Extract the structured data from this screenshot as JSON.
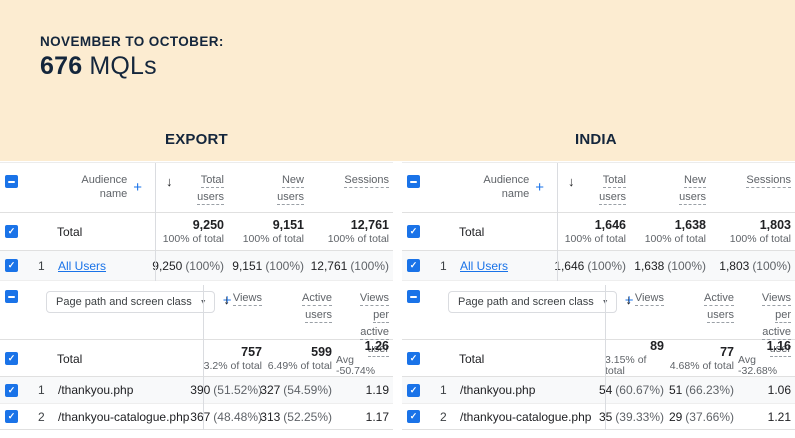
{
  "banner": {
    "kicker": "NOVEMBER TO OCTOBER:",
    "value": "676",
    "unit": "MQLs"
  },
  "icons": {
    "sort": "↓",
    "add": "+",
    "caret": "▼",
    "check": "✓"
  },
  "colors": {
    "banner_bg": "#fcecd1",
    "heading_navy": "#14263c",
    "accent_blue": "#1a73e8",
    "text_dark": "#202124",
    "text_gray": "#5f6368",
    "row_alt_bg": "#f8f9fa",
    "border": "#e0e0e0"
  },
  "panels": [
    {
      "title": "EXPORT",
      "audience": {
        "dimension_lines": [
          "Audience",
          "name"
        ],
        "columns": [
          {
            "label": "Total users",
            "lines": [
              "Total",
              "users"
            ]
          },
          {
            "label": "New users",
            "lines": [
              "New",
              "users"
            ]
          },
          {
            "label": "Sessions",
            "lines": [
              "Sessions"
            ]
          }
        ],
        "total": {
          "label": "Total",
          "cells": [
            {
              "value": "9,250",
              "sub": "100% of total"
            },
            {
              "value": "9,151",
              "sub": "100% of total"
            },
            {
              "value": "12,761",
              "sub": "100% of total"
            }
          ]
        },
        "rows": [
          {
            "index": "1",
            "name": "All Users",
            "cells": [
              {
                "value": "9,250",
                "pct": "(100%)"
              },
              {
                "value": "9,151",
                "pct": "(100%)"
              },
              {
                "value": "12,761",
                "pct": "(100%)"
              }
            ]
          }
        ]
      },
      "pages": {
        "selector": "Page path and screen class",
        "columns": [
          {
            "label": "Views",
            "lines": [
              "Views"
            ]
          },
          {
            "label": "Active users",
            "lines": [
              "Active",
              "users"
            ]
          },
          {
            "label": "Views per active user",
            "lines": [
              "Views",
              "per",
              "active",
              "user"
            ]
          }
        ],
        "total": {
          "label": "Total",
          "cells": [
            {
              "value": "757",
              "sub": "3.2% of total"
            },
            {
              "value": "599",
              "sub": "6.49% of total"
            },
            {
              "value": "1.26",
              "sub": "Avg -50.74%"
            }
          ]
        },
        "rows": [
          {
            "index": "1",
            "name": "/thankyou.php",
            "cells": [
              {
                "value": "390",
                "pct": "(51.52%)"
              },
              {
                "value": "327",
                "pct": "(54.59%)"
              },
              {
                "value": "1.19",
                "pct": ""
              }
            ]
          },
          {
            "index": "2",
            "name": "/thankyou-catalogue.php",
            "cells": [
              {
                "value": "367",
                "pct": "(48.48%)"
              },
              {
                "value": "313",
                "pct": "(52.25%)"
              },
              {
                "value": "1.17",
                "pct": ""
              }
            ]
          }
        ]
      }
    },
    {
      "title": "INDIA",
      "audience": {
        "dimension_lines": [
          "Audience",
          "name"
        ],
        "columns": [
          {
            "label": "Total users",
            "lines": [
              "Total",
              "users"
            ]
          },
          {
            "label": "New users",
            "lines": [
              "New",
              "users"
            ]
          },
          {
            "label": "Sessions",
            "lines": [
              "Sessions"
            ]
          }
        ],
        "total": {
          "label": "Total",
          "cells": [
            {
              "value": "1,646",
              "sub": "100% of total"
            },
            {
              "value": "1,638",
              "sub": "100% of total"
            },
            {
              "value": "1,803",
              "sub": "100% of total"
            }
          ]
        },
        "rows": [
          {
            "index": "1",
            "name": "All Users",
            "cells": [
              {
                "value": "1,646",
                "pct": "(100%)"
              },
              {
                "value": "1,638",
                "pct": "(100%)"
              },
              {
                "value": "1,803",
                "pct": "(100%)"
              }
            ]
          }
        ]
      },
      "pages": {
        "selector": "Page path and screen class",
        "columns": [
          {
            "label": "Views",
            "lines": [
              "Views"
            ]
          },
          {
            "label": "Active users",
            "lines": [
              "Active",
              "users"
            ]
          },
          {
            "label": "Views per active user",
            "lines": [
              "Views",
              "per",
              "active",
              "user"
            ]
          }
        ],
        "total": {
          "label": "Total",
          "cells": [
            {
              "value": "89",
              "sub": "3.15% of total"
            },
            {
              "value": "77",
              "sub": "4.68% of total"
            },
            {
              "value": "1.16",
              "sub": "Avg -32.68%"
            }
          ]
        },
        "rows": [
          {
            "index": "1",
            "name": "/thankyou.php",
            "cells": [
              {
                "value": "54",
                "pct": "(60.67%)"
              },
              {
                "value": "51",
                "pct": "(66.23%)"
              },
              {
                "value": "1.06",
                "pct": ""
              }
            ]
          },
          {
            "index": "2",
            "name": "/thankyou-catalogue.php",
            "cells": [
              {
                "value": "35",
                "pct": "(39.33%)"
              },
              {
                "value": "29",
                "pct": "(37.66%)"
              },
              {
                "value": "1.21",
                "pct": ""
              }
            ]
          }
        ]
      }
    }
  ]
}
